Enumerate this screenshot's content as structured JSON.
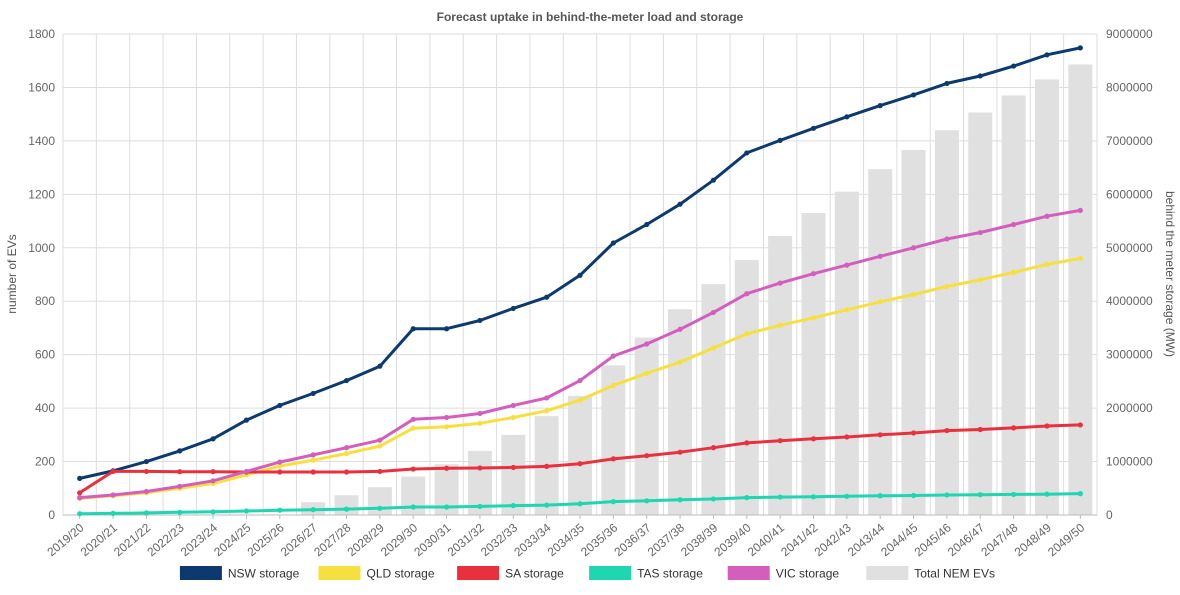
{
  "chart_data": {
    "type": "line",
    "title": "Forecast uptake in behind-the-meter load and storage",
    "ylabel": "number of EVs",
    "y2label": "behind the meter storage (MW)",
    "ylim": [
      0,
      1800
    ],
    "y2lim": [
      0,
      9000000
    ],
    "yticks": [
      "0",
      "200",
      "400",
      "600",
      "800",
      "1000",
      "1200",
      "1400",
      "1600",
      "1800"
    ],
    "y2ticks": [
      "0",
      "1000000",
      "2000000",
      "3000000",
      "4000000",
      "5000000",
      "6000000",
      "7000000",
      "8000000",
      "9000000"
    ],
    "grid": true,
    "legend_position": "bottom",
    "categories": [
      "2019/20",
      "2020/21",
      "2021/22",
      "2022/23",
      "2023/24",
      "2024/25",
      "2025/26",
      "2026/27",
      "2027/28",
      "2028/29",
      "2029/30",
      "2030/31",
      "2031/32",
      "2032/33",
      "2033/34",
      "2034/35",
      "2035/36",
      "2036/37",
      "2037/38",
      "2038/39",
      "2039/40",
      "2040/41",
      "2041/42",
      "2042/43",
      "2043/44",
      "2044/45",
      "2045/46",
      "2046/47",
      "2047/48",
      "2048/49",
      "2049/50"
    ],
    "series": [
      {
        "name": "NSW storage",
        "kind": "line",
        "axis": "left",
        "color": "#0c3a6e",
        "values": [
          137,
          165,
          200,
          240,
          285,
          355,
          410,
          455,
          503,
          557,
          697,
          697,
          728,
          773,
          815,
          897,
          1018,
          1087,
          1163,
          1253,
          1355,
          1402,
          1447,
          1490,
          1532,
          1572,
          1615,
          1643,
          1680,
          1722,
          1748
        ]
      },
      {
        "name": "QLD storage",
        "kind": "line",
        "axis": "left",
        "color": "#f6e040",
        "values": [
          62,
          72,
          83,
          100,
          118,
          150,
          183,
          205,
          230,
          258,
          325,
          330,
          343,
          365,
          390,
          430,
          485,
          530,
          572,
          625,
          678,
          710,
          738,
          768,
          798,
          825,
          855,
          880,
          908,
          938,
          960
        ]
      },
      {
        "name": "SA storage",
        "kind": "line",
        "axis": "left",
        "color": "#e8303e",
        "values": [
          83,
          163,
          163,
          162,
          162,
          161,
          161,
          161,
          161,
          163,
          172,
          175,
          176,
          178,
          182,
          192,
          210,
          222,
          235,
          252,
          270,
          278,
          285,
          292,
          300,
          307,
          316,
          320,
          326,
          333,
          337
        ]
      },
      {
        "name": "TAS storage",
        "kind": "line",
        "axis": "left",
        "color": "#1ed6b0",
        "values": [
          5,
          6,
          8,
          10,
          12,
          15,
          18,
          20,
          22,
          25,
          30,
          30,
          32,
          35,
          37,
          42,
          50,
          53,
          57,
          60,
          65,
          67,
          68,
          70,
          72,
          73,
          75,
          76,
          77,
          78,
          80
        ]
      },
      {
        "name": "VIC storage",
        "kind": "line",
        "axis": "left",
        "color": "#d35ebd",
        "values": [
          65,
          75,
          88,
          107,
          128,
          163,
          198,
          225,
          252,
          280,
          358,
          365,
          380,
          410,
          438,
          503,
          595,
          640,
          695,
          758,
          828,
          868,
          903,
          935,
          968,
          1000,
          1033,
          1057,
          1087,
          1118,
          1140
        ]
      },
      {
        "name": "Total NEM EVs",
        "kind": "bar",
        "axis": "right",
        "color": "#e0e0e0",
        "values": [
          0,
          0,
          0,
          0,
          0,
          0,
          0,
          240000,
          370000,
          520000,
          720000,
          950000,
          1200000,
          1500000,
          1850000,
          2230000,
          2800000,
          3320000,
          3850000,
          4320000,
          4770000,
          5220000,
          5650000,
          6050000,
          6470000,
          6830000,
          7200000,
          7530000,
          7850000,
          8150000,
          8430000
        ]
      }
    ]
  }
}
